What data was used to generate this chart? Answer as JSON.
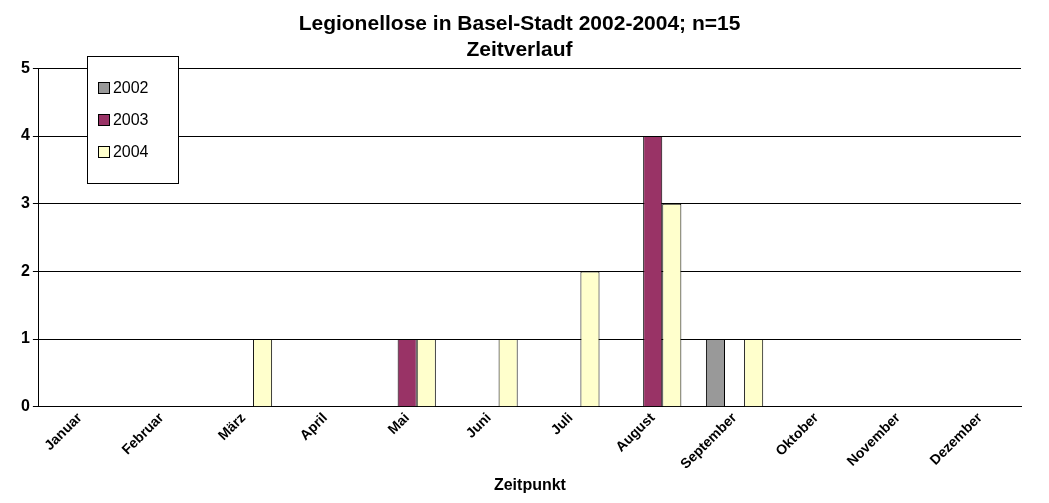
{
  "chart_data": {
    "type": "bar",
    "title": [
      "Legionellose in Basel-Stadt 2002-2004; n=15",
      "Zeitverlauf"
    ],
    "xlabel": "Zeitpunkt",
    "categories": [
      "Januar",
      "Februar",
      "März",
      "April",
      "Mai",
      "Juni",
      "Juli",
      "August",
      "September",
      "Oktober",
      "November",
      "Dezember"
    ],
    "series": [
      {
        "name": "2002",
        "color": "#999999",
        "values": [
          0,
          0,
          0,
          0,
          0,
          0,
          0,
          0,
          1,
          0,
          0,
          0
        ]
      },
      {
        "name": "2003",
        "color": "#993366",
        "values": [
          0,
          0,
          0,
          0,
          1,
          0,
          0,
          4,
          0,
          0,
          0,
          0
        ]
      },
      {
        "name": "2004",
        "color": "#ffffcc",
        "values": [
          0,
          0,
          1,
          0,
          1,
          1,
          2,
          3,
          1,
          0,
          0,
          0
        ]
      }
    ],
    "ylim": [
      0,
      5
    ],
    "yticks": [
      0,
      1,
      2,
      3,
      4,
      5
    ],
    "grid": "y",
    "legend": "top left"
  }
}
